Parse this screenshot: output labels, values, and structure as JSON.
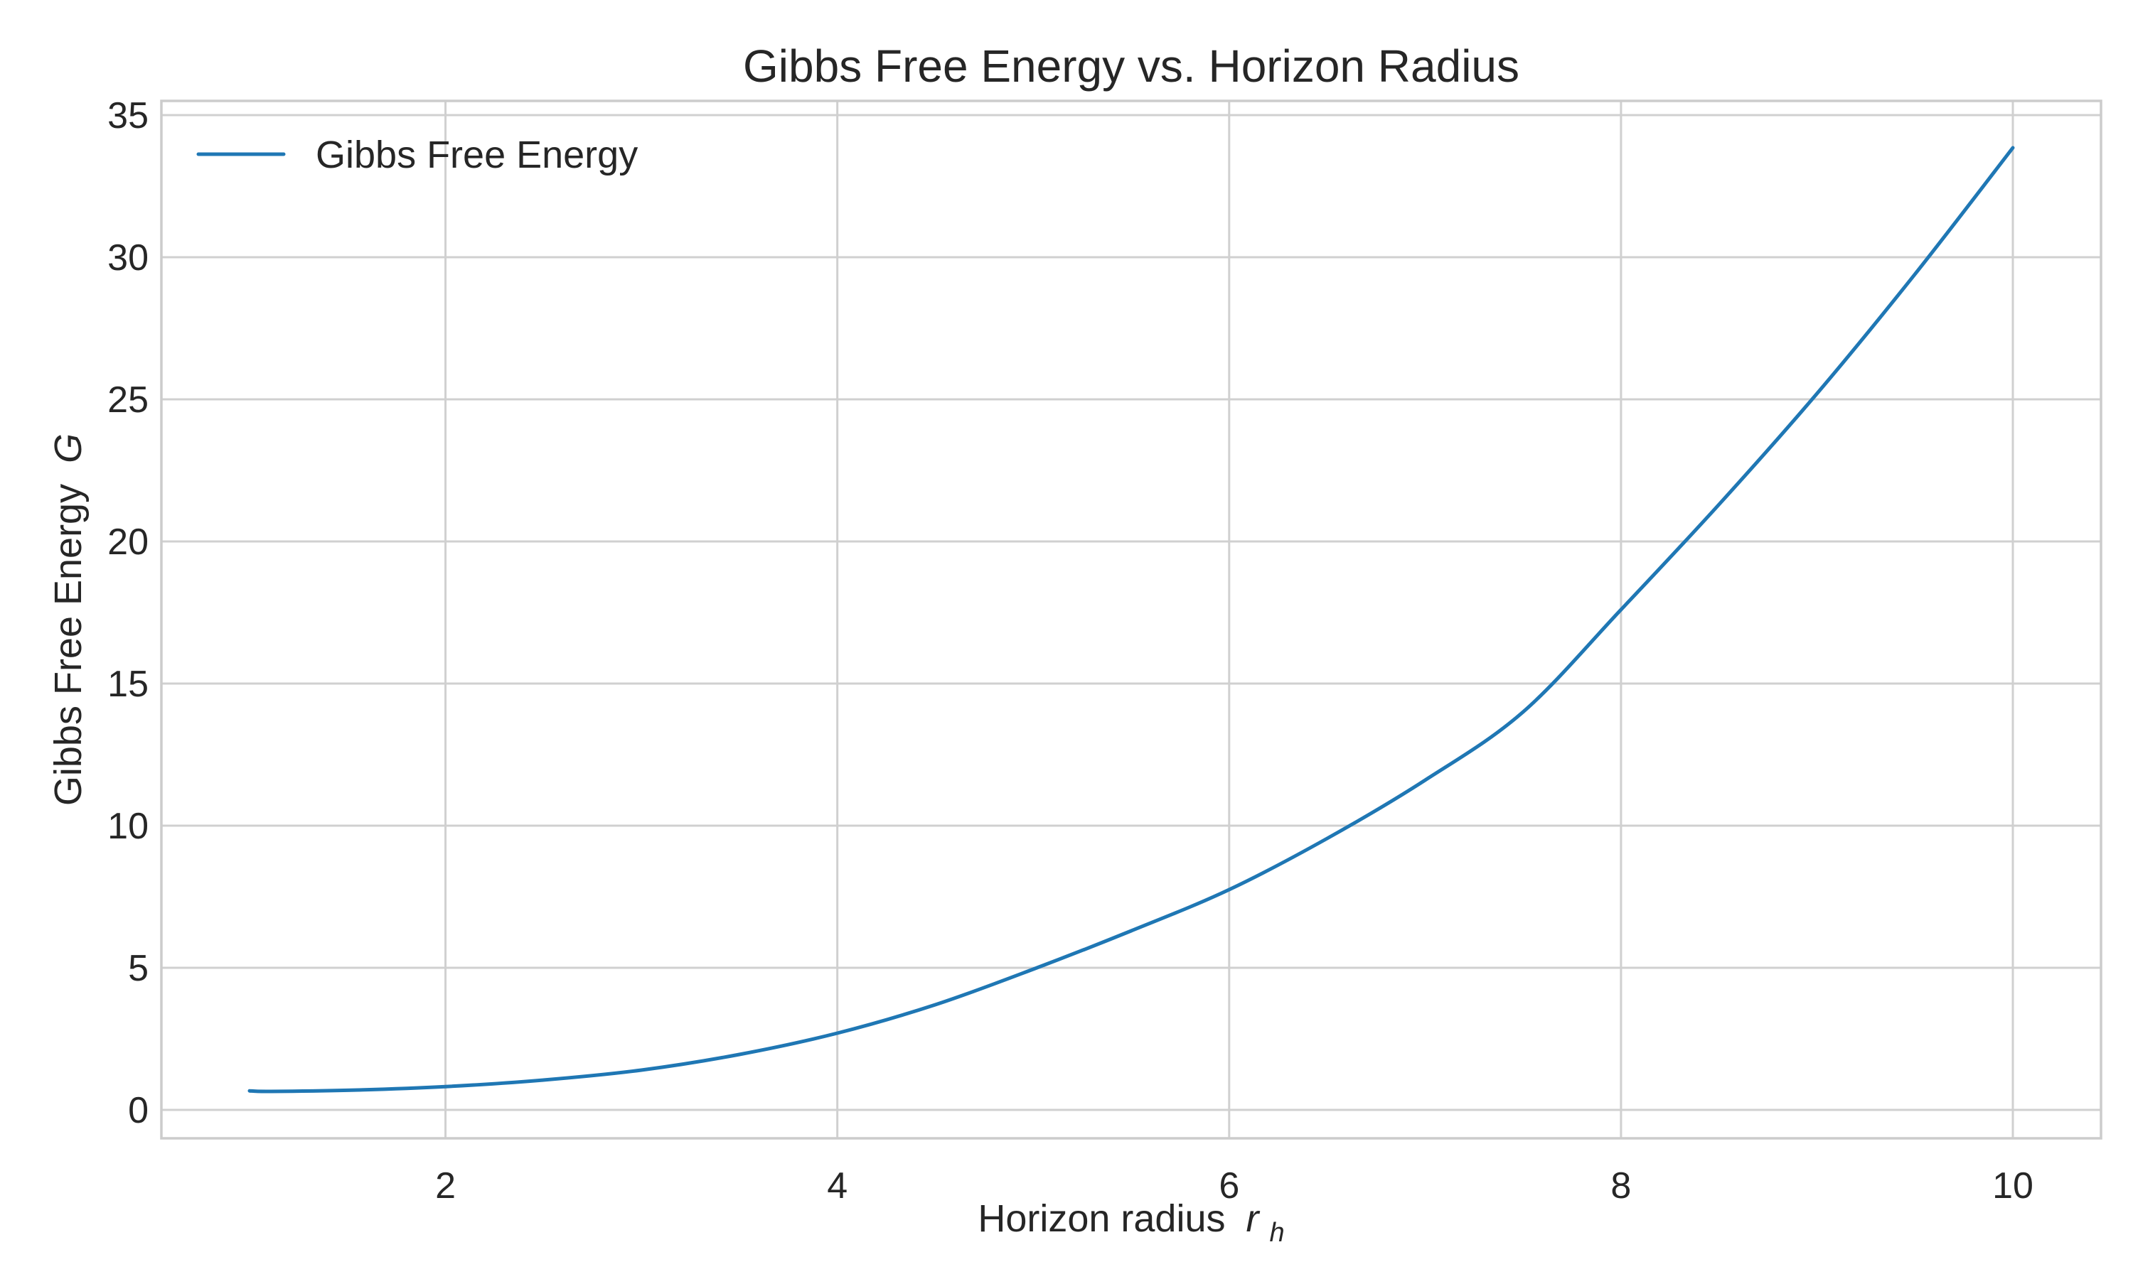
{
  "chart_data": {
    "type": "line",
    "title": "Gibbs Free Energy vs. Horizon Radius",
    "xlabel": {
      "text": "Horizon radius",
      "var": "r",
      "sub": "h"
    },
    "ylabel": {
      "text": "Gibbs Free Energy",
      "var": "G"
    },
    "xlim": [
      0.55,
      10.45
    ],
    "ylim": [
      -1.0,
      35.5
    ],
    "xticks": [
      2,
      4,
      6,
      8,
      10
    ],
    "yticks": [
      0,
      5,
      10,
      15,
      20,
      25,
      30,
      35
    ],
    "grid": true,
    "legend": {
      "placement": "top-left"
    },
    "series": [
      {
        "name": "Gibbs Free Energy",
        "color": "#1f77b4",
        "x": [
          1.0,
          1.1,
          1.5,
          2.0,
          2.5,
          3.0,
          3.5,
          4.0,
          4.5,
          5.0,
          5.5,
          6.0,
          6.5,
          7.0,
          7.5,
          8.0,
          8.5,
          9.0,
          9.5,
          10.0
        ],
        "y": [
          0.67,
          0.65,
          0.69,
          0.82,
          1.05,
          1.4,
          1.95,
          2.7,
          3.7,
          4.95,
          6.3,
          7.75,
          9.55,
          11.6,
          14.0,
          17.6,
          21.3,
          25.2,
          29.4,
          33.85
        ]
      }
    ]
  }
}
